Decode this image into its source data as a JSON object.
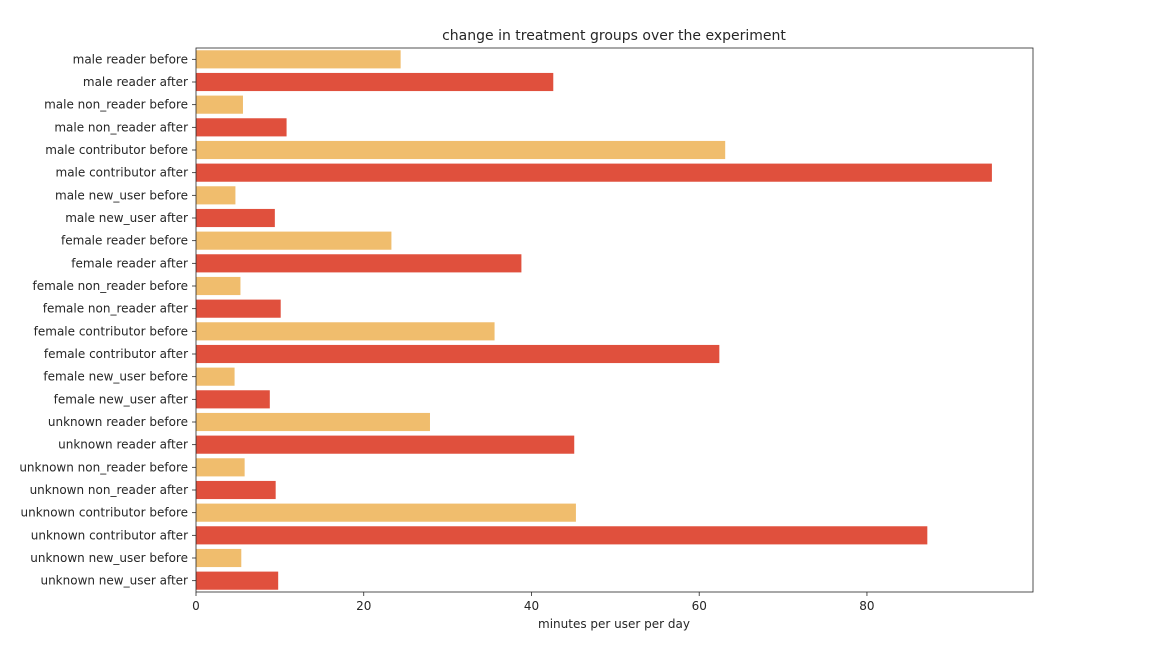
{
  "chart_data": {
    "type": "bar",
    "orientation": "horizontal",
    "title": "change in treatment groups over the experiment",
    "xlabel": "minutes per user per day",
    "ylabel": "",
    "xlim": [
      0,
      100
    ],
    "xticks": [
      0,
      20,
      40,
      60,
      80
    ],
    "grid": false,
    "colors": {
      "before": "#f0bd6d",
      "after": "#e0503d"
    },
    "categories": [
      "male reader before",
      "male reader after",
      "male non_reader before",
      "male non_reader after",
      "male contributor before",
      "male contributor after",
      "male new_user before",
      "male new_user after",
      "female reader before",
      "female reader after",
      "female non_reader before",
      "female non_reader after",
      "female contributor before",
      "female contributor after",
      "female new_user before",
      "female new_user after",
      "unknown reader before",
      "unknown reader after",
      "unknown non_reader before",
      "unknown non_reader after",
      "unknown contributor before",
      "unknown contributor after",
      "unknown new_user before",
      "unknown new_user after"
    ],
    "values": [
      24.4,
      42.6,
      5.6,
      10.8,
      63.1,
      94.9,
      4.7,
      9.4,
      23.3,
      38.8,
      5.3,
      10.1,
      35.6,
      62.4,
      4.6,
      8.8,
      27.9,
      45.1,
      5.8,
      9.5,
      45.3,
      87.2,
      5.4,
      9.8
    ],
    "phases": [
      "before",
      "after",
      "before",
      "after",
      "before",
      "after",
      "before",
      "after",
      "before",
      "after",
      "before",
      "after",
      "before",
      "after",
      "before",
      "after",
      "before",
      "after",
      "before",
      "after",
      "before",
      "after",
      "before",
      "after"
    ]
  }
}
